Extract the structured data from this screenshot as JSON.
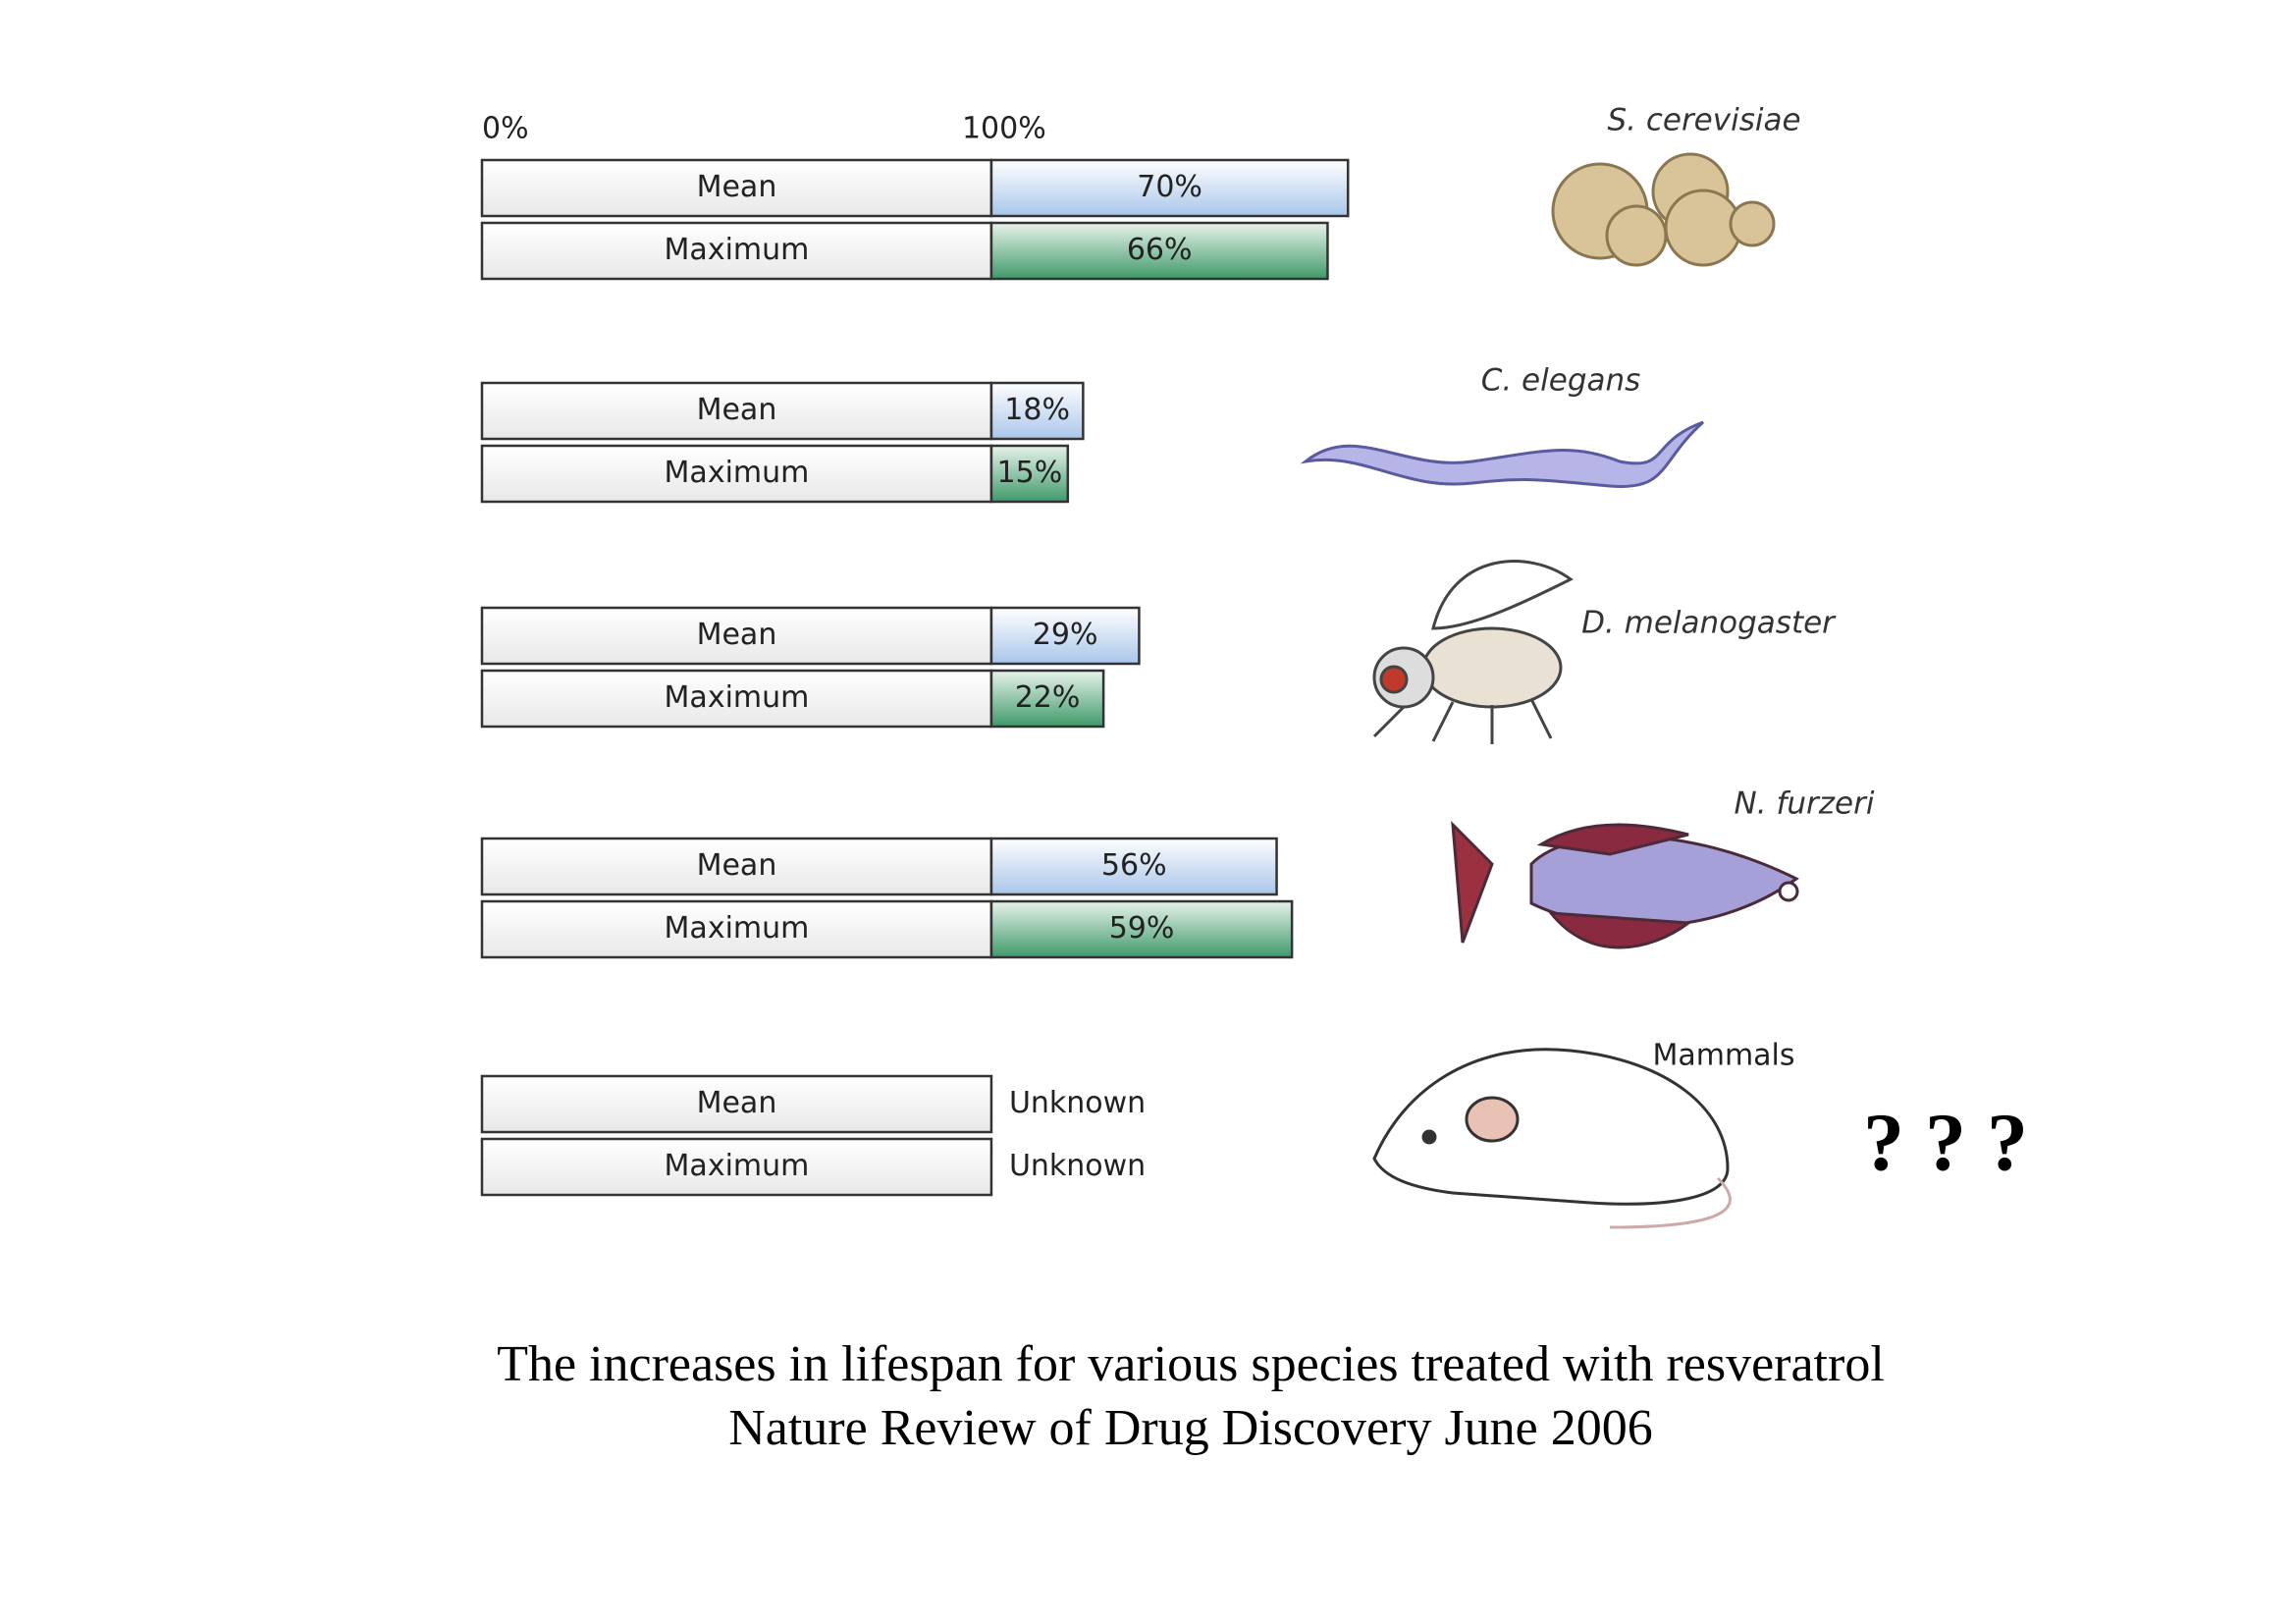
{
  "chart_data": {
    "type": "bar",
    "title": "The increases in lifespan for various species treated with resveratrol",
    "subtitle": "Nature Review of Drug Discovery June 2006",
    "annotation": "? ? ?",
    "categories": [
      "S. cerevisiae",
      "C. elegans",
      "D. melanogaster",
      "N. furzeri",
      "Mammals"
    ],
    "xlim": [
      0,
      190
    ],
    "xticks": [
      {
        "value": 0,
        "label": "0%"
      },
      {
        "value": 100,
        "label": "100%"
      }
    ],
    "series": [
      {
        "name": "Mean",
        "color": "#a9c6ea",
        "values": [
          70,
          18,
          29,
          56,
          null
        ],
        "value_labels": [
          "70%",
          "18%",
          "29%",
          "56%",
          "Unknown"
        ]
      },
      {
        "name": "Maximum",
        "color": "#3f9a6a",
        "values": [
          66,
          15,
          22,
          59,
          null
        ],
        "value_labels": [
          "66%",
          "15%",
          "22%",
          "59%",
          "Unknown"
        ]
      }
    ]
  }
}
